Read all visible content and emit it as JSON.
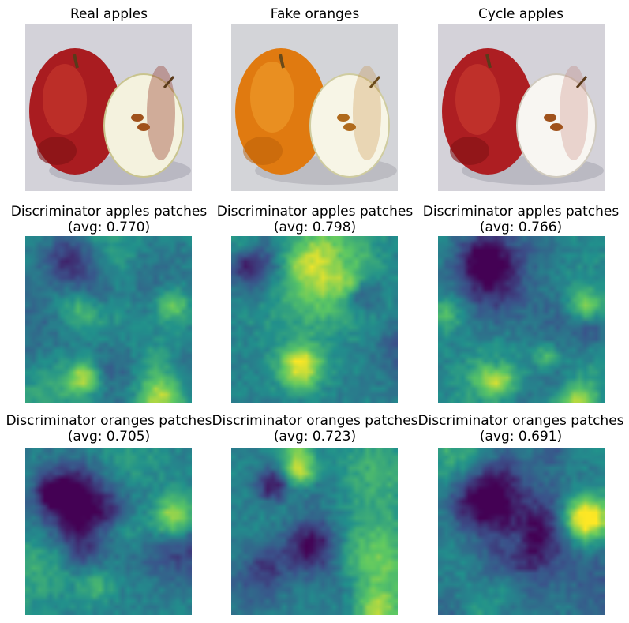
{
  "panels": [
    {
      "title": "Real apples"
    },
    {
      "title": "Fake oranges"
    },
    {
      "title": "Cycle apples"
    }
  ],
  "apple_patch_rows": [
    {
      "line1": "Discriminator apples patches",
      "line2": "(avg: 0.770)"
    },
    {
      "line1": "Discriminator apples patches",
      "line2": "(avg: 0.798)"
    },
    {
      "line1": "Discriminator apples patches",
      "line2": "(avg: 0.766)"
    }
  ],
  "orange_patch_rows": [
    {
      "line1": "Discriminator oranges patches",
      "line2": "(avg: 0.705)"
    },
    {
      "line1": "Discriminator oranges patches",
      "line2": "(avg: 0.723)"
    },
    {
      "line1": "Discriminator oranges patches",
      "line2": "(avg: 0.691)"
    }
  ],
  "colors": {
    "apple_red": "#b01e22",
    "orange": "#e07a10",
    "cut_flesh": "#f6f4e0",
    "background_gray": "#cfcfd6",
    "viridis_low": "#440154",
    "viridis_mid": "#21918c",
    "viridis_high": "#fde725"
  }
}
